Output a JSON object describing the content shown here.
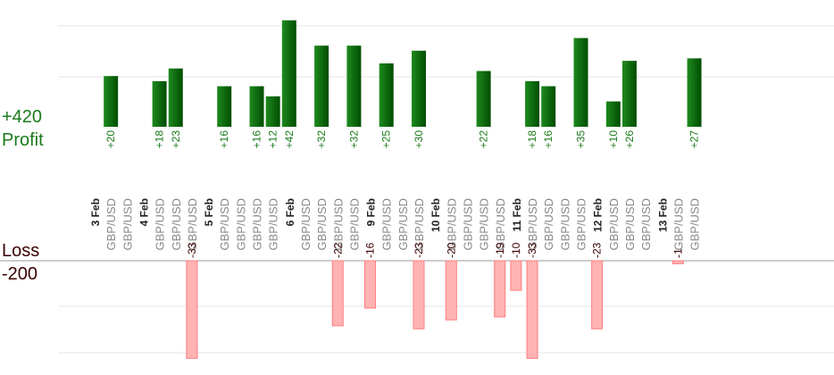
{
  "labels": {
    "profit_total": "+420",
    "profit_title": "Profit",
    "loss_title": "Loss",
    "loss_total": "-200"
  },
  "colors": {
    "profit_text": "#1a7a1a",
    "loss_text": "#3a0000",
    "profit_bar_dark": "#004d00",
    "profit_bar_light": "#1f8a1f",
    "loss_bar_fill": "#ffb3b3",
    "loss_bar_stroke": "#ff7d7d",
    "grid": "#e6e6e6",
    "baseline": "#999999",
    "tick_text": "#888888",
    "date_text": "#222222"
  },
  "chart_data": [
    {
      "type": "bar",
      "title": "Profit",
      "total_label": "+420",
      "ylim": [
        0,
        50
      ],
      "grid": true,
      "categories": [
        "3 Feb",
        "GBP/USD",
        "GBP/USD",
        "4 Feb",
        "GBP/USD",
        "GBP/USD",
        "GBP/USD",
        "5 Feb",
        "GBP/USD",
        "GBP/USD",
        "GBP/USD",
        "GBP/USD",
        "6 Feb",
        "GBP/USD",
        "GBP/USD",
        "GBP/USD",
        "GBP/USD",
        "9 Feb",
        "GBP/USD",
        "GBP/USD",
        "GBP/USD",
        "10 Feb",
        "GBP/USD",
        "GBP/USD",
        "GBP/USD",
        "GBP/USD",
        "11 Feb",
        "GBP/USD",
        "GBP/USD",
        "GBP/USD",
        "GBP/USD",
        "12 Feb",
        "GBP/USD",
        "GBP/USD",
        "GBP/USD",
        "13 Feb",
        "GBP/USD",
        "GBP/USD"
      ],
      "values": [
        null,
        20,
        null,
        null,
        18,
        23,
        null,
        null,
        16,
        null,
        16,
        12,
        42,
        null,
        32,
        null,
        32,
        null,
        25,
        null,
        30,
        null,
        null,
        null,
        22,
        null,
        null,
        18,
        16,
        null,
        35,
        null,
        10,
        26,
        null,
        null,
        null,
        27
      ],
      "value_labels": [
        null,
        "+20",
        null,
        null,
        "+18",
        "+23",
        null,
        null,
        "+16",
        null,
        "+16",
        "+12",
        "+42",
        null,
        "+32",
        null,
        "+32",
        null,
        "+25",
        null,
        "+30",
        null,
        null,
        null,
        "+22",
        null,
        null,
        "+18",
        "+16",
        null,
        "+35",
        null,
        "+10",
        "+26",
        null,
        null,
        null,
        "+27"
      ]
    },
    {
      "type": "bar",
      "title": "Loss",
      "total_label": "-200",
      "ylim": [
        -35,
        0
      ],
      "grid": true,
      "categories": [
        "3 Feb",
        "GBP/USD",
        "GBP/USD",
        "4 Feb",
        "GBP/USD",
        "GBP/USD",
        "GBP/USD",
        "5 Feb",
        "GBP/USD",
        "GBP/USD",
        "GBP/USD",
        "GBP/USD",
        "6 Feb",
        "GBP/USD",
        "GBP/USD",
        "GBP/USD",
        "GBP/USD",
        "9 Feb",
        "GBP/USD",
        "GBP/USD",
        "GBP/USD",
        "10 Feb",
        "GBP/USD",
        "GBP/USD",
        "GBP/USD",
        "GBP/USD",
        "11 Feb",
        "GBP/USD",
        "GBP/USD",
        "GBP/USD",
        "GBP/USD",
        "12 Feb",
        "GBP/USD",
        "GBP/USD",
        "GBP/USD",
        "13 Feb",
        "GBP/USD",
        "GBP/USD"
      ],
      "values": [
        null,
        null,
        null,
        null,
        null,
        null,
        -33,
        null,
        null,
        null,
        null,
        null,
        null,
        null,
        null,
        -22,
        null,
        -16,
        null,
        null,
        -23,
        null,
        -20,
        null,
        null,
        -19,
        -10,
        -33,
        null,
        null,
        null,
        -23,
        null,
        null,
        null,
        null,
        -1,
        null
      ],
      "value_labels": [
        null,
        null,
        null,
        null,
        null,
        null,
        "-33",
        null,
        null,
        null,
        null,
        null,
        null,
        null,
        null,
        "-22",
        null,
        "-16",
        null,
        null,
        "-23",
        null,
        "-20",
        null,
        null,
        "-19",
        "-10",
        "-33",
        null,
        null,
        null,
        "-23",
        null,
        null,
        null,
        null,
        "-1",
        null
      ]
    }
  ]
}
